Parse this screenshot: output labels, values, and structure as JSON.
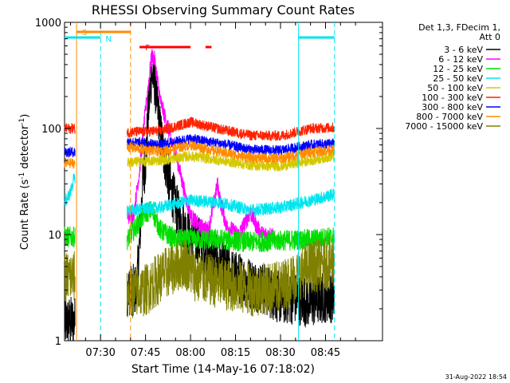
{
  "chart_data": {
    "type": "line",
    "title": "RHESSI Observing Summary Count Rates",
    "xlabel": "Start Time (14-May-16 07:18:02)",
    "ylabel": "Count Rate (s⁻¹ detector⁻¹)",
    "ylabel_main": "Count Rate (s",
    "ylabel_sup1": "-1",
    "ylabel_mid": " detector",
    "ylabel_sup2": "-1",
    "ylabel_end": ")",
    "y_scale": "log",
    "ylim": [
      1,
      1000
    ],
    "xlim": [
      18,
      124
    ],
    "x_unit": "minutes after 07:00",
    "x_ticks": [
      {
        "value": 30,
        "label": "07:30"
      },
      {
        "value": 45,
        "label": "07:45"
      },
      {
        "value": 60,
        "label": "08:00"
      },
      {
        "value": 75,
        "label": "08:15"
      },
      {
        "value": 90,
        "label": "08:30"
      },
      {
        "value": 105,
        "label": "08:45"
      }
    ],
    "y_ticks": [
      {
        "value": 1,
        "label": "1"
      },
      {
        "value": 10,
        "label": "10"
      },
      {
        "value": 100,
        "label": "100"
      },
      {
        "value": 1000,
        "label": "1000"
      }
    ],
    "legend_header": [
      "Det 1,3, FDecim 1,",
      "Att 0"
    ],
    "legend_position": "top-right",
    "timestamp": "31-Aug-2022 18:54",
    "series": [
      {
        "name": "3 - 6 keV",
        "color": "#000000",
        "amp": 0.25,
        "points": [
          [
            18,
            1.5
          ],
          [
            25,
            1.5
          ],
          [
            39,
            3
          ],
          [
            42,
            3
          ],
          [
            43,
            8
          ],
          [
            44,
            30
          ],
          [
            45,
            50
          ],
          [
            46,
            150
          ],
          [
            47,
            330
          ],
          [
            48,
            280
          ],
          [
            50,
            90
          ],
          [
            53,
            30
          ],
          [
            56,
            15
          ],
          [
            59,
            10
          ],
          [
            62,
            9
          ],
          [
            66,
            7
          ],
          [
            70,
            5
          ],
          [
            75,
            4
          ],
          [
            80,
            3.5
          ],
          [
            85,
            3
          ],
          [
            90,
            2.5
          ],
          [
            95,
            2.5
          ],
          [
            100,
            2.3
          ],
          [
            105,
            2.6
          ],
          [
            108,
            2.6
          ]
        ]
      },
      {
        "name": "6 - 12 keV",
        "color": "#ff00ff",
        "amp": 0.08,
        "points": [
          [
            39,
            15
          ],
          [
            41,
            15
          ],
          [
            43,
            40
          ],
          [
            45,
            150
          ],
          [
            47,
            480
          ],
          [
            48,
            450
          ],
          [
            50,
            180
          ],
          [
            53,
            90
          ],
          [
            56,
            45
          ],
          [
            58,
            25
          ],
          [
            60,
            15
          ],
          [
            63,
            12
          ],
          [
            66,
            11
          ],
          [
            69,
            30
          ],
          [
            70,
            20
          ],
          [
            72,
            12
          ],
          [
            76,
            10
          ],
          [
            80,
            16
          ],
          [
            82,
            12
          ],
          [
            84,
            10
          ],
          [
            88,
            10
          ]
        ]
      },
      {
        "name": "12 - 25 keV",
        "color": "#00dd00",
        "amp": 0.1,
        "points": [
          [
            18,
            9.5
          ],
          [
            21,
            9.5
          ],
          [
            39,
            9
          ],
          [
            42,
            12
          ],
          [
            45,
            16
          ],
          [
            47,
            17
          ],
          [
            50,
            11
          ],
          [
            55,
            9
          ],
          [
            60,
            9
          ],
          [
            70,
            9
          ],
          [
            80,
            8.5
          ],
          [
            90,
            8.8
          ],
          [
            100,
            9
          ],
          [
            108,
            9.5
          ]
        ]
      },
      {
        "name": "25 - 50 keV",
        "color": "#00e5ee",
        "amp": 0.06,
        "points": [
          [
            18,
            20
          ],
          [
            20,
            25
          ],
          [
            21,
            33
          ],
          [
            39,
            17
          ],
          [
            50,
            18
          ],
          [
            60,
            21
          ],
          [
            70,
            20
          ],
          [
            80,
            17
          ],
          [
            90,
            18
          ],
          [
            100,
            21
          ],
          [
            108,
            24
          ]
        ]
      },
      {
        "name": "50 - 100 keV",
        "color": "#d4c800",
        "amp": 0.05,
        "points": [
          [
            39,
            48
          ],
          [
            50,
            50
          ],
          [
            60,
            55
          ],
          [
            70,
            50
          ],
          [
            80,
            45
          ],
          [
            90,
            44
          ],
          [
            100,
            50
          ],
          [
            108,
            55
          ]
        ]
      },
      {
        "name": "100 - 300 keV",
        "color": "#ff2200",
        "amp": 0.05,
        "points": [
          [
            18,
            100
          ],
          [
            21,
            100
          ],
          [
            39,
            92
          ],
          [
            50,
            95
          ],
          [
            60,
            115
          ],
          [
            70,
            98
          ],
          [
            80,
            86
          ],
          [
            90,
            85
          ],
          [
            100,
            100
          ],
          [
            108,
            102
          ]
        ]
      },
      {
        "name": "300 - 800 keV",
        "color": "#0000ff",
        "amp": 0.05,
        "points": [
          [
            18,
            60
          ],
          [
            21,
            60
          ],
          [
            39,
            75
          ],
          [
            50,
            70
          ],
          [
            60,
            80
          ],
          [
            70,
            72
          ],
          [
            80,
            63
          ],
          [
            90,
            62
          ],
          [
            100,
            70
          ],
          [
            108,
            72
          ]
        ]
      },
      {
        "name": "800 - 7000 keV",
        "color": "#ff8c00",
        "amp": 0.05,
        "points": [
          [
            18,
            47
          ],
          [
            21,
            47
          ],
          [
            39,
            67
          ],
          [
            50,
            60
          ],
          [
            60,
            70
          ],
          [
            70,
            60
          ],
          [
            80,
            53
          ],
          [
            90,
            52
          ],
          [
            100,
            60
          ],
          [
            108,
            63
          ]
        ]
      },
      {
        "name": "7000 - 15000 keV",
        "color": "#808000",
        "amp": 0.25,
        "points": [
          [
            18,
            4
          ],
          [
            21,
            4
          ],
          [
            39,
            2.8
          ],
          [
            45,
            3
          ],
          [
            50,
            4
          ],
          [
            55,
            5
          ],
          [
            58,
            5.5
          ],
          [
            62,
            4
          ],
          [
            70,
            3.5
          ],
          [
            80,
            3
          ],
          [
            90,
            3.2
          ],
          [
            100,
            5
          ],
          [
            108,
            5.5
          ]
        ]
      }
    ],
    "annotations": [
      {
        "label": "S",
        "color": "#ff8c00",
        "start": 22,
        "end": 40
      },
      {
        "label": "N",
        "color": "#00e5ee",
        "start": 18,
        "end": 30
      },
      {
        "label": "",
        "color": "#00e5ee",
        "start": 96,
        "end": 108
      },
      {
        "label": "F",
        "color": "#ff0000",
        "start": 43,
        "end": 60
      },
      {
        "label": "",
        "color": "#ff0000",
        "start": 65,
        "end": 67
      }
    ],
    "markers": [
      {
        "type": "solid",
        "color": "#ff8c00",
        "x": 22
      },
      {
        "type": "dashed",
        "color": "#00e5ee",
        "x": 30
      },
      {
        "type": "dashed",
        "color": "#ff8c00",
        "x": 40
      },
      {
        "type": "solid",
        "color": "#00e5ee",
        "x": 96
      },
      {
        "type": "dashed",
        "color": "#00e5ee",
        "x": 108
      }
    ],
    "gaps": [
      [
        21.5,
        38.8
      ]
    ]
  }
}
